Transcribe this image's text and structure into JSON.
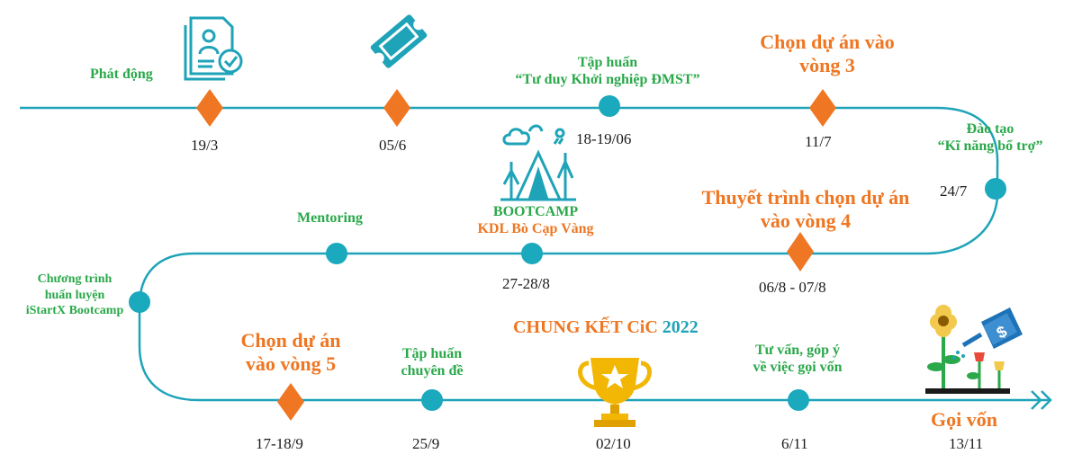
{
  "colors": {
    "line": "#1ea3b8",
    "diamond": "#ef7622",
    "green": "#2aa84a",
    "orange": "#ef7622",
    "dot": "#1aa9bd",
    "gold": "#f2b705"
  },
  "milestones": [
    {
      "label": "Phát động",
      "date": "19/3"
    },
    {
      "label": "",
      "date": "05/6"
    },
    {
      "label1": "Tập huấn",
      "label2": "“Tư duy Khởi nghiệp ĐMST”",
      "date": "18-19/06"
    },
    {
      "label1": "Chọn dự án vào",
      "label2": "vòng 3",
      "date": "11/7"
    },
    {
      "label1": "Đào tạo",
      "label2": "“Kĩ năng bổ trợ”",
      "date": "24/7"
    },
    {
      "label1": "Thuyết trình chọn dự án",
      "label2": "vào vòng 4",
      "date": "06/8 - 07/8"
    },
    {
      "label1": "BOOTCAMP",
      "label2": "KDL Bò Cạp Vàng",
      "date": "27-28/8"
    },
    {
      "label": "Mentoring"
    },
    {
      "label1": "Chương trình",
      "label2": "huấn luyện",
      "label3": "iStartX Bootcamp"
    },
    {
      "label1": "Chọn dự án",
      "label2": "vào vòng 5",
      "date": "17-18/9"
    },
    {
      "label1": "Tập huấn",
      "label2": "chuyên đề",
      "date": "25/9"
    },
    {
      "label1": "CHUNG KẾT ",
      "label_ci": "CiC",
      "label_year": " 2022",
      "date": "02/10"
    },
    {
      "label1": "Tư vấn, góp ý",
      "label2": "về việc gọi vốn",
      "date": "6/11"
    },
    {
      "label": "Gọi vốn",
      "date": "13/11"
    }
  ]
}
